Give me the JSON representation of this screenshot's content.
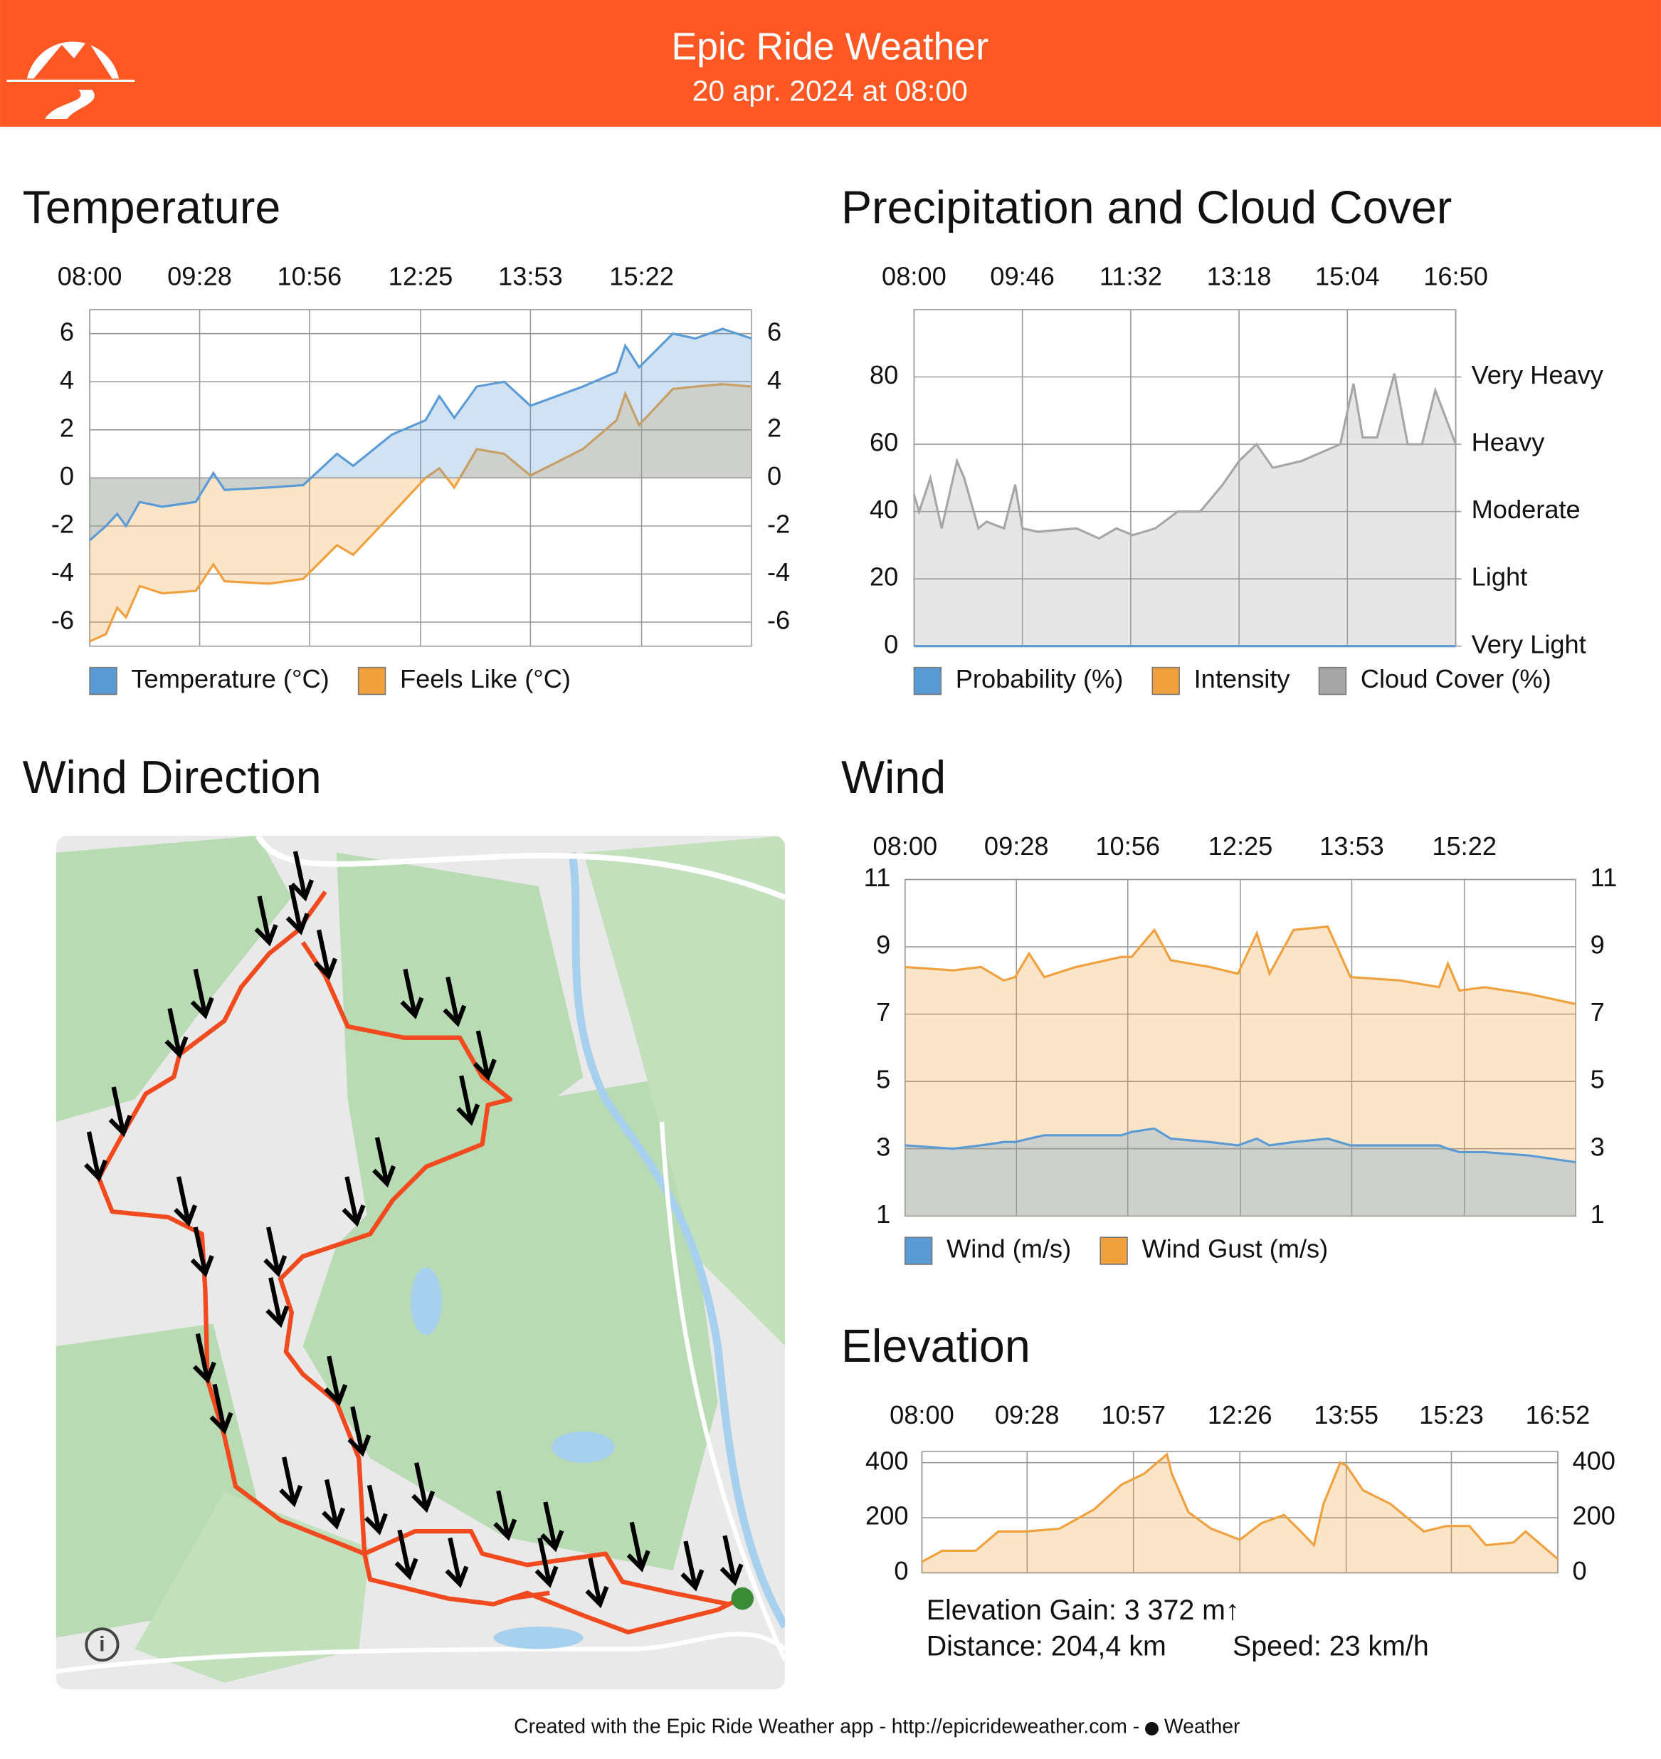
{
  "header": {
    "title": "Epic Ride Weather",
    "subtitle": "20 apr. 2024 at 08:00"
  },
  "map": {
    "title": "Wind Direction"
  },
  "elevation_stats": {
    "gain": "Elevation Gain: 3 372 m↑",
    "distance": "Distance: 204,4 km",
    "speed": "Speed: 23 km/h"
  },
  "footer": {
    "text": "Created with the Epic Ride Weather app - http://epicrideweather.com -",
    "source": "Weather"
  },
  "chart_data": [
    {
      "type": "area",
      "title": "Temperature",
      "legend": true,
      "y_labels_both_sides": true,
      "xlim": [
        480,
        1010
      ],
      "xticks": [
        {
          "value": 480,
          "label": "08:00"
        },
        {
          "value": 568,
          "label": "09:28"
        },
        {
          "value": 656,
          "label": "10:56"
        },
        {
          "value": 745,
          "label": "12:25"
        },
        {
          "value": 833,
          "label": "13:53"
        },
        {
          "value": 922,
          "label": "15:22"
        }
      ],
      "ylim": [
        -7,
        7
      ],
      "yticks": [
        -6,
        -4,
        -2,
        0,
        2,
        4,
        6
      ],
      "x": [
        480,
        493,
        502,
        509,
        520,
        538,
        565,
        579,
        588,
        624,
        651,
        678,
        691,
        722,
        749,
        760,
        772,
        790,
        812,
        833,
        875,
        902,
        909,
        920,
        947,
        965,
        987,
        1010
      ],
      "series": [
        {
          "name": "Temperature (°C)",
          "color": "#5b9bd5",
          "values": [
            -2.6,
            -2.0,
            -1.5,
            -2.0,
            -1.0,
            -1.2,
            -1.0,
            0.2,
            -0.5,
            -0.4,
            -0.3,
            1.0,
            0.5,
            1.8,
            2.4,
            3.4,
            2.5,
            3.8,
            4.0,
            3.0,
            3.8,
            4.4,
            5.5,
            4.6,
            6.0,
            5.8,
            6.2,
            5.8
          ]
        },
        {
          "name": "Feels Like (°C)",
          "color": "#f0a03c",
          "values": [
            -6.8,
            -6.5,
            -5.4,
            -5.8,
            -4.5,
            -4.8,
            -4.7,
            -3.6,
            -4.3,
            -4.4,
            -4.2,
            -2.8,
            -3.2,
            -1.5,
            0,
            0.4,
            -0.4,
            1.2,
            1.0,
            0.1,
            1.2,
            2.4,
            3.5,
            2.2,
            3.7,
            3.8,
            3.9,
            3.8
          ]
        }
      ]
    },
    {
      "type": "area",
      "title": "Precipitation and Cloud Cover",
      "legend": true,
      "y_labels_both_sides": false,
      "xlim": [
        480,
        1010
      ],
      "xticks": [
        {
          "value": 480,
          "label": "08:00"
        },
        {
          "value": 586,
          "label": "09:46"
        },
        {
          "value": 692,
          "label": "11:32"
        },
        {
          "value": 798,
          "label": "13:18"
        },
        {
          "value": 904,
          "label": "15:04"
        },
        {
          "value": 1010,
          "label": "16:50"
        }
      ],
      "ylim": [
        0,
        100
      ],
      "yticks": [
        0,
        20,
        40,
        60,
        80
      ],
      "y2lim": [
        0,
        100
      ],
      "y2ticks": [
        {
          "value": 0,
          "label": "Very Light"
        },
        {
          "value": 20,
          "label": "Light"
        },
        {
          "value": 40,
          "label": "Moderate"
        },
        {
          "value": 60,
          "label": "Heavy"
        },
        {
          "value": 80,
          "label": "Very Heavy"
        }
      ],
      "x": [
        480,
        485,
        496,
        507,
        522,
        529,
        543,
        551,
        568,
        579,
        586,
        601,
        639,
        661,
        678,
        694,
        716,
        738,
        760,
        782,
        798,
        815,
        831,
        859,
        897,
        910,
        919,
        933,
        950,
        963,
        977,
        990,
        1010
      ],
      "series": [
        {
          "name": "Probability (%)",
          "color": "#5b9bd5",
          "values": [
            0,
            0,
            0,
            0,
            0,
            0,
            0,
            0,
            0,
            0,
            0,
            0,
            0,
            0,
            0,
            0,
            0,
            0,
            0,
            0,
            0,
            0,
            0,
            0,
            0,
            0,
            0,
            0,
            0,
            0,
            0,
            0,
            0
          ]
        },
        {
          "name": "Intensity",
          "color": "#f0a03c",
          "axis": "y2",
          "values": [
            0,
            0,
            0,
            0,
            0,
            0,
            0,
            0,
            0,
            0,
            0,
            0,
            0,
            0,
            0,
            0,
            0,
            0,
            0,
            0,
            0,
            0,
            0,
            0,
            0,
            0,
            0,
            0,
            0,
            0,
            0,
            0,
            0
          ]
        },
        {
          "name": "Cloud Cover (%)",
          "color": "#a6a6a6",
          "values": [
            45,
            40,
            50,
            35,
            55,
            50,
            35,
            37,
            35,
            48,
            35,
            34,
            35,
            32,
            35,
            33,
            35,
            40,
            40,
            48,
            55,
            60,
            53,
            55,
            60,
            78,
            62,
            62,
            81,
            60,
            60,
            76,
            60
          ]
        }
      ]
    },
    {
      "type": "area",
      "title": "Wind",
      "legend": true,
      "y_labels_both_sides": true,
      "xlim": [
        480,
        1010
      ],
      "xticks": [
        {
          "value": 480,
          "label": "08:00"
        },
        {
          "value": 568,
          "label": "09:28"
        },
        {
          "value": 656,
          "label": "10:56"
        },
        {
          "value": 745,
          "label": "12:25"
        },
        {
          "value": 833,
          "label": "13:53"
        },
        {
          "value": 922,
          "label": "15:22"
        }
      ],
      "ylim": [
        1,
        11
      ],
      "yticks": [
        1,
        3,
        5,
        7,
        9,
        11
      ],
      "x": [
        480,
        518,
        540,
        558,
        567,
        578,
        590,
        615,
        651,
        659,
        677,
        690,
        721,
        743,
        758,
        768,
        787,
        814,
        832,
        871,
        902,
        909,
        918,
        938,
        973,
        1010
      ],
      "series": [
        {
          "name": "Wind (m/s)",
          "color": "#5b9bd5",
          "values": [
            3.1,
            3.0,
            3.1,
            3.2,
            3.2,
            3.3,
            3.4,
            3.4,
            3.4,
            3.5,
            3.6,
            3.3,
            3.2,
            3.1,
            3.3,
            3.1,
            3.2,
            3.3,
            3.1,
            3.1,
            3.1,
            3.0,
            2.9,
            2.9,
            2.8,
            2.6
          ]
        },
        {
          "name": "Wind Gust (m/s)",
          "color": "#f0a03c",
          "values": [
            8.4,
            8.3,
            8.4,
            8.0,
            8.1,
            8.8,
            8.1,
            8.4,
            8.7,
            8.7,
            9.5,
            8.6,
            8.4,
            8.2,
            9.4,
            8.2,
            9.5,
            9.6,
            8.1,
            8.0,
            7.8,
            8.5,
            7.7,
            7.8,
            7.6,
            7.3
          ]
        }
      ]
    },
    {
      "type": "area",
      "title": "Elevation",
      "legend": false,
      "y_labels_both_sides": true,
      "xlim": [
        480,
        1012
      ],
      "xticks": [
        {
          "value": 480,
          "label": "08:00"
        },
        {
          "value": 568,
          "label": "09:28"
        },
        {
          "value": 657,
          "label": "10:57"
        },
        {
          "value": 746,
          "label": "12:26"
        },
        {
          "value": 835,
          "label": "13:55"
        },
        {
          "value": 923,
          "label": "15:23"
        },
        {
          "value": 1012,
          "label": "16:52"
        }
      ],
      "ylim": [
        0,
        440
      ],
      "yticks": [
        0,
        200,
        400
      ],
      "x": [
        480,
        497,
        525,
        544,
        567,
        595,
        624,
        647,
        666,
        685,
        689,
        703,
        722,
        746,
        764,
        783,
        797,
        808,
        816,
        830,
        835,
        849,
        872,
        900,
        919,
        938,
        952,
        975,
        985,
        1012
      ],
      "series": [
        {
          "name": "Elevation",
          "color": "#f0a03c",
          "values": [
            40,
            80,
            80,
            150,
            150,
            160,
            230,
            320,
            360,
            430,
            360,
            220,
            160,
            120,
            180,
            210,
            150,
            100,
            250,
            400,
            390,
            300,
            250,
            150,
            170,
            170,
            100,
            110,
            150,
            50
          ]
        }
      ]
    }
  ]
}
